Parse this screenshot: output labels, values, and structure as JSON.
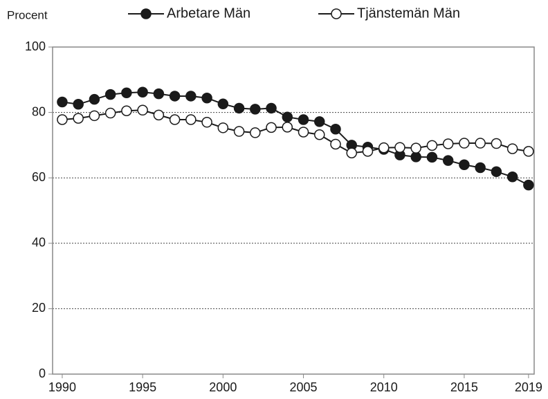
{
  "chart_data": {
    "type": "line",
    "ylabel": "Procent",
    "x": [
      1990,
      1991,
      1992,
      1993,
      1994,
      1995,
      1996,
      1997,
      1998,
      1999,
      2000,
      2001,
      2002,
      2003,
      2004,
      2005,
      2006,
      2007,
      2008,
      2009,
      2010,
      2011,
      2012,
      2013,
      2014,
      2015,
      2016,
      2017,
      2018,
      2019
    ],
    "series": [
      {
        "name": "Arbetare Män",
        "color": "#1a1a1a",
        "marker_fill": "#1a1a1a",
        "values": [
          83.2,
          82.5,
          84,
          85.5,
          86,
          86.2,
          85.7,
          85,
          85,
          84.4,
          82.6,
          81.3,
          81,
          81.3,
          78.6,
          77.8,
          77.2,
          74.9,
          70,
          69.4,
          68.7,
          67,
          66.4,
          66.3,
          65.3,
          64,
          63.1,
          61.9,
          60.3,
          57.8
        ]
      },
      {
        "name": "Tjänstemän Män",
        "color": "#1a1a1a",
        "marker_fill": "#ffffff",
        "values": [
          77.8,
          78.2,
          79,
          79.8,
          80.5,
          80.7,
          79.2,
          77.8,
          77.8,
          77,
          75.3,
          74.2,
          73.8,
          75.4,
          75.5,
          74,
          73.2,
          70.3,
          67.6,
          68.1,
          69.2,
          69.3,
          69.1,
          69.9,
          70.4,
          70.6,
          70.6,
          70.5,
          68.9,
          68.1
        ]
      }
    ],
    "xlim": [
      1989.4,
      2019.35
    ],
    "xticks": [
      1990,
      1995,
      2000,
      2005,
      2010,
      2015,
      2019
    ],
    "ylim": [
      0,
      100
    ],
    "yticks": [
      0,
      20,
      40,
      60,
      80,
      100
    ],
    "grid": true,
    "legend": "top"
  }
}
